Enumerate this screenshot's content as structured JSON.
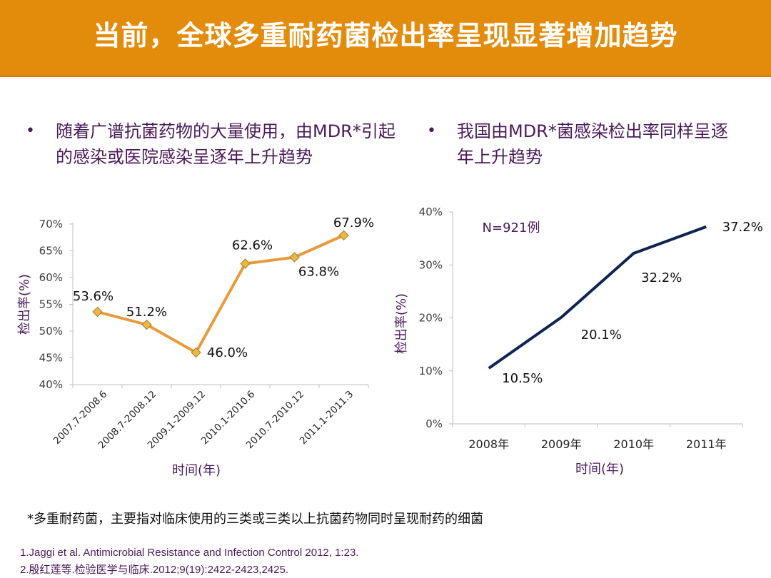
{
  "slide": {
    "title": "当前，全球多重耐药菌检出率呈现显著增加趋势",
    "accent_color": "#e38c0c"
  },
  "bullets": [
    {
      "text": "随着广谱抗菌药物的大量使用，由MDR*引起的感染或医院感染呈逐年上升趋势"
    },
    {
      "text": "我国由MDR*菌感染检出率同样呈逐年上升趋势"
    }
  ],
  "footnote": "*多重耐药菌，主要指对临床使用的三类或三类以上抗菌药物同时呈现耐药的细菌",
  "references": [
    "1.Jaggi et al. Antimicrobial Resistance and Infection Control 2012, 1:23.",
    "2.殷红莲等.检验医学与临床.2012;9(19):2422-2423,2425."
  ],
  "chart_data": [
    {
      "type": "line",
      "title": "",
      "xlabel": "时间(年)",
      "ylabel": "检出率(%)",
      "categories": [
        "2007.7-2008.6",
        "2008.7-2008.12",
        "2009.1-2009.12",
        "2010.1-2010.6",
        "2010.7-2010.12",
        "2011.1-2011.3"
      ],
      "values": [
        53.6,
        51.2,
        46.0,
        62.6,
        63.8,
        67.9
      ],
      "data_labels": [
        "53.6%",
        "51.2%",
        "46.0%",
        "62.6%",
        "63.8%",
        "67.9%"
      ],
      "ylim": [
        40,
        70
      ],
      "yticks": [
        "40%",
        "45%",
        "50%",
        "55%",
        "60%",
        "65%",
        "70%"
      ],
      "line_color": "#e89a3c",
      "marker_color": "#e8b84a",
      "marker": "diamond",
      "grid": false,
      "legend": "none"
    },
    {
      "type": "line",
      "title": "",
      "xlabel": "时间(年)",
      "ylabel": "检出率(%)",
      "annotation": "N=921例",
      "categories": [
        "2008年",
        "2009年",
        "2010年",
        "2011年"
      ],
      "values": [
        10.5,
        20.1,
        32.2,
        37.2
      ],
      "data_labels": [
        "10.5%",
        "20.1%",
        "32.2%",
        "37.2%"
      ],
      "ylim": [
        0,
        40
      ],
      "yticks": [
        "0%",
        "10%",
        "20%",
        "30%",
        "40%"
      ],
      "line_color": "#0f2453",
      "grid": false,
      "legend": "none"
    }
  ]
}
